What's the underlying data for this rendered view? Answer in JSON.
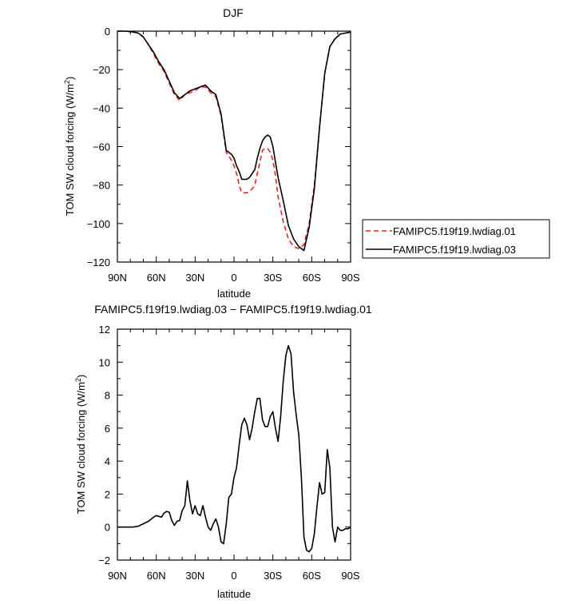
{
  "chart_data": [
    {
      "type": "line",
      "title": "DJF",
      "xlabel": "latitude",
      "ylabel": "TOM SW cloud forcing (W/m",
      "ylabel_sup": "2",
      "ylabel_tail": ")",
      "xlim": [
        90,
        -90
      ],
      "ylim": [
        -120,
        0
      ],
      "x_ticks": [
        90,
        60,
        30,
        0,
        -30,
        -60,
        -90
      ],
      "x_tick_labels": [
        "90N",
        "60N",
        "30N",
        "0",
        "30S",
        "60S",
        "90S"
      ],
      "y_ticks": [
        0,
        -20,
        -40,
        -60,
        -80,
        -100,
        -120
      ],
      "y_tick_labels": [
        "0",
        "−20",
        "−40",
        "−60",
        "−80",
        "−100",
        "−120"
      ],
      "legend_position": "right",
      "series": [
        {
          "name": "FAMIPC5.f19f19.lwdiag.01",
          "color": "#e8231f",
          "dash": "dashed",
          "x": [
            90,
            84,
            78,
            74,
            70,
            66,
            62,
            58,
            54,
            50,
            46,
            42,
            38,
            34,
            30,
            26,
            22,
            18,
            14,
            10,
            6,
            2,
            0,
            -2,
            -4,
            -6,
            -8,
            -10,
            -12,
            -14,
            -16,
            -18,
            -20,
            -22,
            -24,
            -26,
            -28,
            -30,
            -32,
            -34,
            -38,
            -42,
            -46,
            -50,
            -54,
            -58,
            -62,
            -66,
            -70,
            -74,
            -78,
            -82,
            -86,
            -90
          ],
          "values": [
            0,
            0,
            -0.4,
            -1,
            -3,
            -7,
            -12,
            -17,
            -21,
            -27,
            -33,
            -36,
            -33,
            -32,
            -31,
            -29,
            -29,
            -32,
            -34,
            -44,
            -63,
            -67,
            -70,
            -74,
            -80,
            -84,
            -84,
            -84,
            -83,
            -82,
            -80,
            -74,
            -68,
            -62,
            -61,
            -61,
            -63,
            -67,
            -75,
            -86,
            -99,
            -108,
            -112,
            -113,
            -111,
            -100,
            -80,
            -50,
            -22,
            -8,
            -4,
            -1.5,
            -1,
            -0.5
          ]
        },
        {
          "name": "FAMIPC5.f19f19.lwdiag.03",
          "color": "#000000",
          "dash": "solid",
          "x": [
            90,
            84,
            78,
            74,
            70,
            66,
            62,
            58,
            54,
            50,
            46,
            42,
            38,
            34,
            30,
            26,
            22,
            18,
            14,
            10,
            6,
            2,
            0,
            -2,
            -4,
            -6,
            -8,
            -10,
            -12,
            -14,
            -16,
            -18,
            -20,
            -22,
            -24,
            -26,
            -28,
            -30,
            -32,
            -34,
            -38,
            -42,
            -46,
            -50,
            -54,
            -58,
            -62,
            -66,
            -70,
            -74,
            -78,
            -82,
            -86,
            -90
          ],
          "values": [
            0,
            0,
            -0.4,
            -1,
            -3,
            -7,
            -11,
            -16,
            -20,
            -26,
            -32,
            -35,
            -33,
            -31,
            -30,
            -29,
            -28,
            -31,
            -33,
            -43,
            -62,
            -64,
            -66,
            -70,
            -73,
            -77,
            -77,
            -77,
            -76,
            -74,
            -72,
            -66,
            -61,
            -57,
            -55,
            -54,
            -55,
            -60,
            -68,
            -76,
            -88,
            -101,
            -108,
            -112,
            -114,
            -102,
            -82,
            -50,
            -22,
            -8,
            -4,
            -1.5,
            -1,
            -0.5
          ]
        }
      ]
    },
    {
      "type": "line",
      "title": "FAMIPC5.f19f19.lwdiag.03 − FAMIPC5.f19f19.lwdiag.01",
      "xlabel": "latitude",
      "ylabel": "TOM SW cloud forcing (W/m",
      "ylabel_sup": "2",
      "ylabel_tail": ")",
      "xlim": [
        90,
        -90
      ],
      "ylim": [
        -2,
        12
      ],
      "x_ticks": [
        90,
        60,
        30,
        0,
        -30,
        -60,
        -90
      ],
      "x_tick_labels": [
        "90N",
        "60N",
        "30N",
        "0",
        "30S",
        "60S",
        "90S"
      ],
      "y_ticks": [
        12,
        10,
        8,
        6,
        4,
        2,
        0,
        -2
      ],
      "y_tick_labels": [
        "12",
        "10",
        "8",
        "6",
        "4",
        "2",
        "0",
        "−2"
      ],
      "series": [
        {
          "name": "",
          "color": "#000000",
          "dash": "solid",
          "x": [
            90,
            84,
            78,
            74,
            70,
            66,
            62,
            60,
            58,
            56,
            54,
            52,
            50,
            48,
            46,
            44,
            42,
            40,
            38,
            36,
            34,
            32,
            30,
            28,
            26,
            24,
            22,
            20,
            18,
            16,
            14,
            12,
            10,
            8,
            6,
            4,
            2,
            0,
            -2,
            -4,
            -6,
            -8,
            -10,
            -12,
            -14,
            -16,
            -18,
            -20,
            -22,
            -24,
            -26,
            -28,
            -30,
            -32,
            -34,
            -36,
            -38,
            -40,
            -42,
            -44,
            -46,
            -48,
            -50,
            -52,
            -54,
            -56,
            -58,
            -60,
            -62,
            -64,
            -66,
            -68,
            -70,
            -72,
            -74,
            -76,
            -78,
            -80,
            -82,
            -84,
            -86,
            -88,
            -90
          ],
          "values": [
            0,
            0,
            0,
            0.05,
            0.2,
            0.35,
            0.6,
            0.7,
            0.65,
            0.6,
            0.85,
            0.95,
            0.9,
            0.4,
            0.1,
            0.35,
            0.4,
            1.0,
            1.3,
            2.8,
            1.6,
            0.8,
            1.3,
            0.8,
            0.7,
            1.3,
            0.6,
            0.0,
            -0.2,
            0.2,
            0.5,
            0.0,
            -0.9,
            -1.0,
            0.2,
            1.8,
            2.0,
            3.0,
            3.6,
            5.0,
            6.2,
            6.6,
            6.2,
            5.3,
            6.0,
            7.0,
            7.8,
            7.8,
            6.5,
            6.1,
            6.1,
            6.7,
            7.0,
            6.0,
            5.2,
            6.7,
            8.8,
            10.4,
            11.0,
            10.5,
            8.2,
            6.8,
            5.6,
            3.0,
            -0.6,
            -1.4,
            -1.5,
            -1.3,
            -0.4,
            1.2,
            2.7,
            2.0,
            2.1,
            4.7,
            3.6,
            0.0,
            -0.9,
            0.0,
            -0.2,
            -0.2,
            -0.1,
            -0.1,
            0.0
          ]
        }
      ]
    }
  ]
}
